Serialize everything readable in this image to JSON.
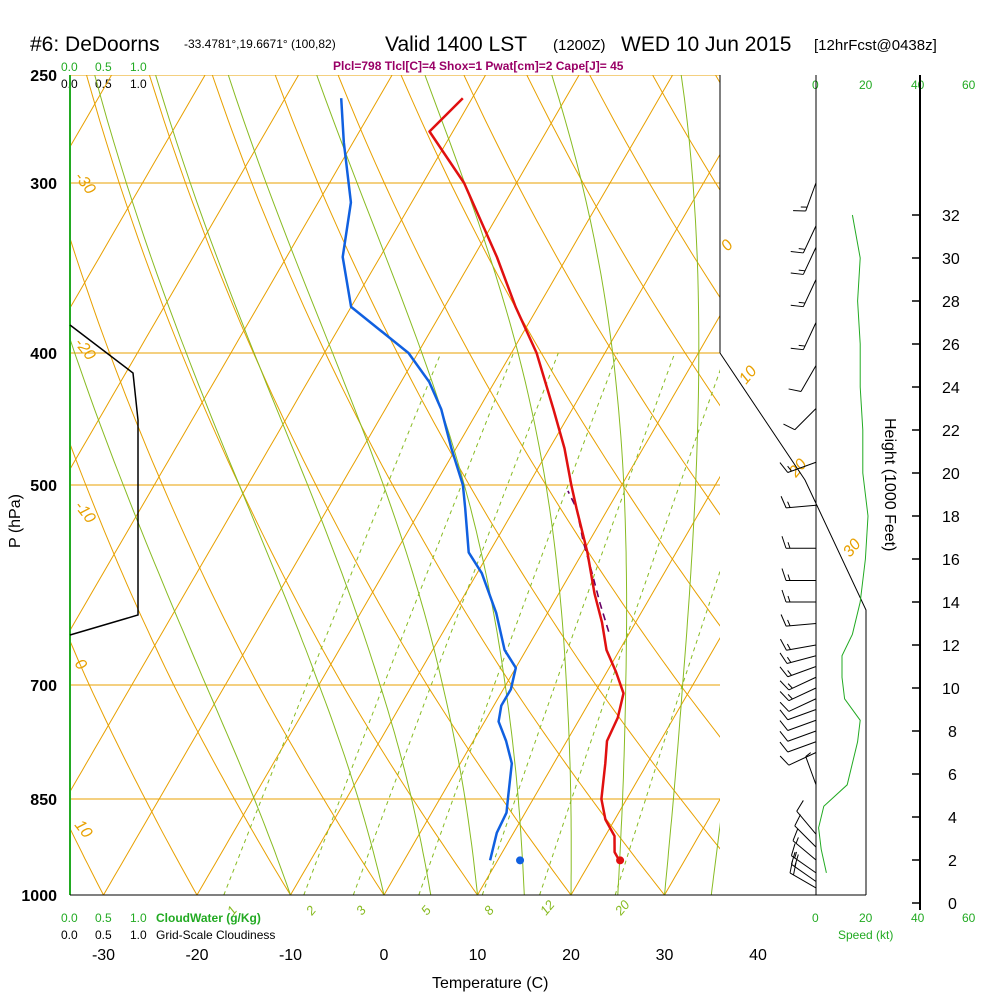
{
  "header": {
    "station": "#6: DeDoorns",
    "coords": "-33.4781°,19.6671° (100,82)",
    "valid": "Valid 1400 LST",
    "valid_utc": "(1200Z)",
    "date": "WED 10 Jun 2015",
    "forecast": "[12hrFcst@0438z]",
    "indices": "Plcl=798 Tlcl[C]=4 Shox=1 Pwat[cm]=2 Cape[J]= 45"
  },
  "axes": {
    "pressure_label": "P (hPa)",
    "temperature_label": "Temperature (C)",
    "height_label": "Height (1000 Feet)",
    "speed_label": "Speed (kt)",
    "cloudwater_label": "CloudWater (g/Kg)",
    "cloudiness_label": "Grid-Scale Cloudiness",
    "cloud_ticks_top_green": [
      "0.0",
      "0.5",
      "1.0"
    ],
    "cloud_ticks_top_black": [
      "0.0",
      "0.5",
      "1.0"
    ],
    "cloud_ticks_bottom_green": [
      "0.0",
      "0.5",
      "1.0"
    ],
    "cloud_ticks_bottom_black": [
      "0.0",
      "0.5",
      "1.0"
    ],
    "speed_ticks": [
      "0",
      "20",
      "40",
      "60"
    ]
  },
  "colors": {
    "isotherm": "#e8a000",
    "dry_adiabat": "#e8a000",
    "moist_adiabat": "#88bb22",
    "mixing_ratio": "#88bb22",
    "temperature": "#e01010",
    "dewpoint": "#1060e0",
    "parcel": "#660066",
    "speed_profile": "#22aa22",
    "text_green": "#22aa22",
    "indices": "#990066"
  },
  "chart_data": {
    "type": "skew-t",
    "pressure_levels": [
      250,
      300,
      400,
      500,
      700,
      850,
      1000
    ],
    "temperature_ticks": [
      -30,
      -20,
      -10,
      0,
      10,
      20,
      30,
      40
    ],
    "height_ticks_kft": [
      0,
      2,
      4,
      6,
      8,
      10,
      12,
      14,
      16,
      18,
      20,
      22,
      24,
      26,
      28,
      30,
      32
    ],
    "isotherm_labels": [
      "-30",
      "-20",
      "-10",
      "0",
      "10",
      "20",
      "30"
    ],
    "dry_adiabat_labels": [
      "10",
      "0",
      "-10",
      "-20",
      "-30"
    ],
    "mixing_ratio_labels": [
      "1",
      "2",
      "3",
      "5",
      "8",
      "12",
      "20"
    ],
    "temperature_profile": [
      {
        "p": 943,
        "t": 23.0
      },
      {
        "p": 930,
        "t": 22.0
      },
      {
        "p": 905,
        "t": 21.0
      },
      {
        "p": 880,
        "t": 19.0
      },
      {
        "p": 850,
        "t": 17.3
      },
      {
        "p": 800,
        "t": 15.5
      },
      {
        "p": 770,
        "t": 14.3
      },
      {
        "p": 740,
        "t": 14.0
      },
      {
        "p": 710,
        "t": 13.1
      },
      {
        "p": 685,
        "t": 11.0
      },
      {
        "p": 660,
        "t": 8.6
      },
      {
        "p": 630,
        "t": 6.4
      },
      {
        "p": 600,
        "t": 3.8
      },
      {
        "p": 560,
        "t": 0.5
      },
      {
        "p": 520,
        "t": -3.4
      },
      {
        "p": 500,
        "t": -5.4
      },
      {
        "p": 470,
        "t": -8.4
      },
      {
        "p": 440,
        "t": -12.0
      },
      {
        "p": 400,
        "t": -17.3
      },
      {
        "p": 370,
        "t": -22.4
      },
      {
        "p": 340,
        "t": -27.5
      },
      {
        "p": 300,
        "t": -35.6
      },
      {
        "p": 275,
        "t": -42.5
      },
      {
        "p": 260,
        "t": -41.0
      }
    ],
    "dewpoint_profile": [
      {
        "p": 943,
        "t": 9.2
      },
      {
        "p": 900,
        "t": 8.2
      },
      {
        "p": 870,
        "t": 8.0
      },
      {
        "p": 850,
        "t": 7.3
      },
      {
        "p": 800,
        "t": 5.5
      },
      {
        "p": 770,
        "t": 3.5
      },
      {
        "p": 745,
        "t": 1.5
      },
      {
        "p": 725,
        "t": 0.8
      },
      {
        "p": 705,
        "t": 0.8
      },
      {
        "p": 680,
        "t": 0.0
      },
      {
        "p": 660,
        "t": -2.3
      },
      {
        "p": 620,
        "t": -5.5
      },
      {
        "p": 580,
        "t": -9.5
      },
      {
        "p": 560,
        "t": -12.2
      },
      {
        "p": 520,
        "t": -15.3
      },
      {
        "p": 500,
        "t": -17.0
      },
      {
        "p": 470,
        "t": -20.5
      },
      {
        "p": 440,
        "t": -24.0
      },
      {
        "p": 420,
        "t": -27.0
      },
      {
        "p": 400,
        "t": -31.0
      },
      {
        "p": 370,
        "t": -40.0
      },
      {
        "p": 340,
        "t": -44.0
      },
      {
        "p": 310,
        "t": -46.5
      },
      {
        "p": 280,
        "t": -51.0
      },
      {
        "p": 260,
        "t": -54.0
      }
    ],
    "parcel_profile": [
      {
        "p": 640,
        "t": 7.7
      },
      {
        "p": 610,
        "t": 5.0
      },
      {
        "p": 580,
        "t": 2.3
      },
      {
        "p": 550,
        "t": -0.6
      },
      {
        "p": 520,
        "t": -3.4
      },
      {
        "p": 505,
        "t": -5.4
      }
    ],
    "surface_temperature_marker": {
      "p": 943,
      "t": 23.1
    },
    "surface_dewpoint_marker": {
      "p": 943,
      "t": 12.4
    },
    "speed_profile_kt": [
      {
        "h": 1.4,
        "s": 4
      },
      {
        "h": 2.5,
        "s": 2
      },
      {
        "h": 3.5,
        "s": 1
      },
      {
        "h": 4.5,
        "s": 3
      },
      {
        "h": 5.5,
        "s": 12
      },
      {
        "h": 6.5,
        "s": 14
      },
      {
        "h": 7.5,
        "s": 16
      },
      {
        "h": 8.5,
        "s": 17
      },
      {
        "h": 9.5,
        "s": 11
      },
      {
        "h": 10.5,
        "s": 10
      },
      {
        "h": 11.5,
        "s": 10
      },
      {
        "h": 12.5,
        "s": 14
      },
      {
        "h": 14,
        "s": 17
      },
      {
        "h": 16,
        "s": 19
      },
      {
        "h": 18,
        "s": 20
      },
      {
        "h": 20,
        "s": 18
      },
      {
        "h": 22,
        "s": 18
      },
      {
        "h": 24,
        "s": 17
      },
      {
        "h": 26,
        "s": 17
      },
      {
        "h": 28,
        "s": 16
      },
      {
        "h": 30,
        "s": 17
      },
      {
        "h": 32,
        "s": 14
      }
    ],
    "wind_barbs": [
      {
        "h": 0.7,
        "dir": 300,
        "spd": 20
      },
      {
        "h": 1.0,
        "dir": 305,
        "spd": 20
      },
      {
        "h": 1.4,
        "dir": 305,
        "spd": 18
      },
      {
        "h": 2.0,
        "dir": 310,
        "spd": 15
      },
      {
        "h": 2.6,
        "dir": 315,
        "spd": 12
      },
      {
        "h": 3.2,
        "dir": 320,
        "spd": 10
      },
      {
        "h": 5.5,
        "dir": 340,
        "spd": 5
      },
      {
        "h": 7.0,
        "dir": 245,
        "spd": 10
      },
      {
        "h": 7.5,
        "dir": 250,
        "spd": 10
      },
      {
        "h": 8.0,
        "dir": 250,
        "spd": 10
      },
      {
        "h": 8.5,
        "dir": 250,
        "spd": 12
      },
      {
        "h": 9.0,
        "dir": 250,
        "spd": 12
      },
      {
        "h": 9.5,
        "dir": 245,
        "spd": 12
      },
      {
        "h": 10.0,
        "dir": 245,
        "spd": 15
      },
      {
        "h": 10.5,
        "dir": 245,
        "spd": 15
      },
      {
        "h": 11.0,
        "dir": 250,
        "spd": 15
      },
      {
        "h": 11.5,
        "dir": 255,
        "spd": 15
      },
      {
        "h": 12.0,
        "dir": 260,
        "spd": 15
      },
      {
        "h": 13.0,
        "dir": 265,
        "spd": 15
      },
      {
        "h": 14.0,
        "dir": 270,
        "spd": 15
      },
      {
        "h": 15.0,
        "dir": 270,
        "spd": 15
      },
      {
        "h": 16.5,
        "dir": 270,
        "spd": 15
      },
      {
        "h": 18.5,
        "dir": 265,
        "spd": 15
      },
      {
        "h": 20.5,
        "dir": 250,
        "spd": 15
      },
      {
        "h": 23.0,
        "dir": 225,
        "spd": 10
      },
      {
        "h": 25.0,
        "dir": 210,
        "spd": 10
      },
      {
        "h": 27.0,
        "dir": 205,
        "spd": 15
      },
      {
        "h": 29.0,
        "dir": 205,
        "spd": 15
      },
      {
        "h": 30.5,
        "dir": 205,
        "spd": 15
      },
      {
        "h": 31.5,
        "dir": 205,
        "spd": 15
      },
      {
        "h": 33.5,
        "dir": 200,
        "spd": 15
      }
    ]
  }
}
